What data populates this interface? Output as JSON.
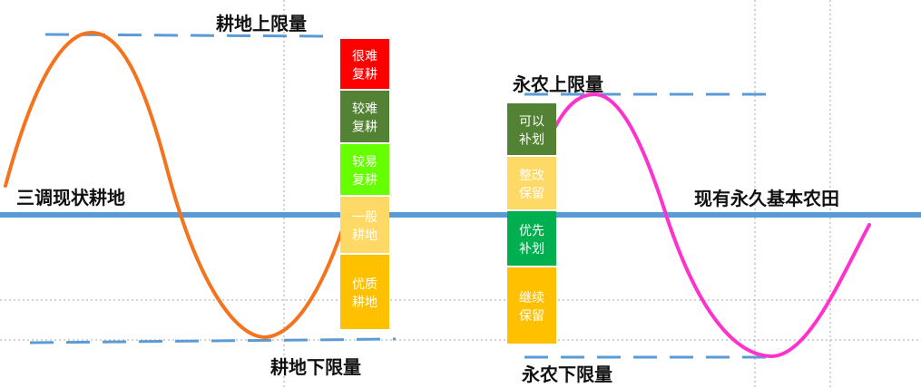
{
  "labels": {
    "farmland_upper": "耕地上限量",
    "farmland_lower": "耕地下限量",
    "farmland_current": "三调现状耕地",
    "permanent_upper": "永农上限量",
    "permanent_lower": "永农下限量",
    "permanent_current": "现有永久基本农田"
  },
  "left_blocks": [
    {
      "line1": "很难",
      "line2": "复耕",
      "color": "#ff0000"
    },
    {
      "line1": "较难",
      "line2": "复耕",
      "color": "#548235"
    },
    {
      "line1": "较易",
      "line2": "复耕",
      "color": "#66ff00"
    },
    {
      "line1": "一般",
      "line2": "耕地",
      "color": "#ffd966"
    },
    {
      "line1": "优质",
      "line2": "耕地",
      "color": "#ffc000"
    }
  ],
  "right_blocks": [
    {
      "line1": "可以",
      "line2": "补划",
      "color": "#548235"
    },
    {
      "line1": "整改",
      "line2": "保留",
      "color": "#ffd966"
    },
    {
      "line1": "优先",
      "line2": "补划",
      "color": "#00b050"
    },
    {
      "line1": "继续",
      "line2": "保留",
      "color": "#ffc000"
    }
  ],
  "colors": {
    "baseline": "#5b9bd5",
    "dashed": "#5b9bd5",
    "grid": "#a6a6a6",
    "farmland_curve": "#f4731c",
    "permanent_curve": "#ff33cc"
  }
}
